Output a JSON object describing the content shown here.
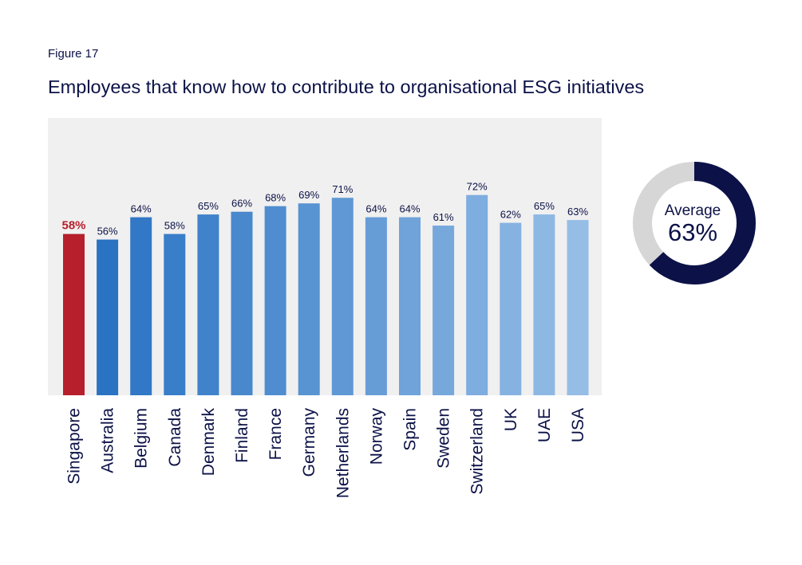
{
  "figure_label": "Figure 17",
  "chart_data": {
    "type": "bar",
    "title": "Employees that know how to contribute to organisational ESG initiatives",
    "categories": [
      "Singapore",
      "Australia",
      "Belgium",
      "Canada",
      "Denmark",
      "Finland",
      "France",
      "Germany",
      "Netherlands",
      "Norway",
      "Spain",
      "Sweden",
      "Switzerland",
      "UK",
      "UAE",
      "USA"
    ],
    "values": [
      58,
      56,
      64,
      58,
      65,
      66,
      68,
      69,
      71,
      64,
      64,
      61,
      72,
      62,
      65,
      63
    ],
    "value_labels": [
      "58%",
      "56%",
      "64%",
      "58%",
      "65%",
      "66%",
      "68%",
      "69%",
      "71%",
      "64%",
      "64%",
      "61%",
      "72%",
      "62%",
      "65%",
      "63%"
    ],
    "highlight_category": "Singapore",
    "colors": {
      "highlight": "#b61f2b",
      "gradient_start": "#2a73c3",
      "gradient_end": "#95bde6",
      "plot_background": "#f0f0f0",
      "highlight_label": "#b61f2b"
    },
    "average": {
      "label": "Average",
      "value": 63,
      "value_label": "63%",
      "colors": {
        "filled": "#0c1247",
        "remaining": "#d6d6d6"
      }
    }
  }
}
